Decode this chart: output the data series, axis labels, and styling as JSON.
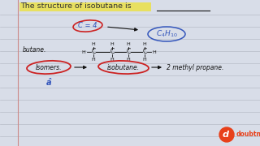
{
  "bg_color": "#d8dde8",
  "line_color": "#b8bcc8",
  "title_color": "#333333",
  "title_highlight": "#e8e060",
  "blue_color": "#3355bb",
  "red_color": "#cc2222",
  "dark_color": "#111111",
  "doubtnut_orange": "#e8401a",
  "margin_color": "#cc8888",
  "title_text": "The structure of isobutane is",
  "underline_color": "#cc4444",
  "c4h10_text": "C₄H₁₀",
  "butane_label": "butane.",
  "isomers_label": "Isomers.",
  "isobutane_label": "isobutane.",
  "methyl_propane_label": "2 methyl propane.",
  "c_eq_4": "C = 4"
}
